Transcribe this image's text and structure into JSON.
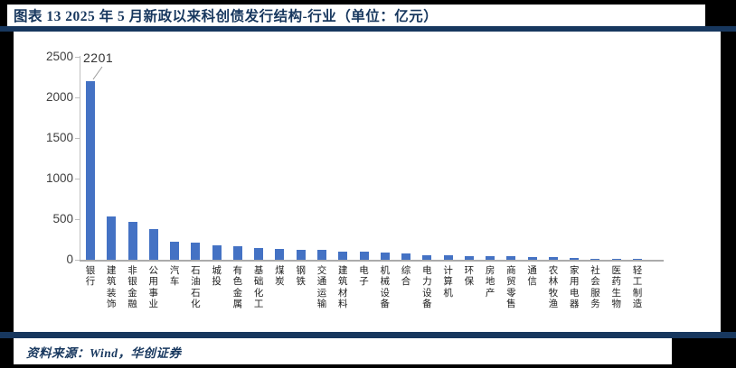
{
  "page": {
    "title": "图表 13  2025 年 5 月新政以来科创债发行结构-行业（单位：亿元）",
    "source": "资料来源：Wind，华创证券"
  },
  "colors": {
    "navy": "#17375E",
    "bar_blue": "#4472C4",
    "axis_gray": "#BFBFBF",
    "baseline_gray": "#ABABAB",
    "tick_text": "#404040",
    "category_text": "#222222",
    "card_bg": "#FFFFFF",
    "page_bg": "#000000"
  },
  "chart_data": {
    "type": "bar",
    "title": "2025 年 5 月新政以来科创债发行结构-行业",
    "unit_label": "单位：亿元",
    "categories": [
      "银行",
      "建筑装饰",
      "非银金融",
      "公用事业",
      "汽车",
      "石油石化",
      "城投",
      "有色金属",
      "基础化工",
      "煤炭",
      "钢铁",
      "交通运输",
      "建筑材料",
      "电子",
      "机械设备",
      "综合",
      "电力设备",
      "计算机",
      "环保",
      "房地产",
      "商贸零售",
      "通信",
      "农林牧渔",
      "家用电器",
      "社会服务",
      "医药生物",
      "轻工制造"
    ],
    "values": [
      2201,
      535,
      470,
      380,
      225,
      210,
      180,
      170,
      140,
      130,
      120,
      118,
      100,
      95,
      88,
      78,
      55,
      52,
      50,
      45,
      42,
      30,
      28,
      18,
      15,
      10,
      6
    ],
    "yticks": [
      0,
      500,
      1000,
      1500,
      2000,
      2500
    ],
    "ylim": [
      0,
      2500
    ],
    "grid": false,
    "legend": null,
    "xlabel": "",
    "ylabel": "",
    "annotation": {
      "index": 0,
      "label": "2201"
    }
  }
}
